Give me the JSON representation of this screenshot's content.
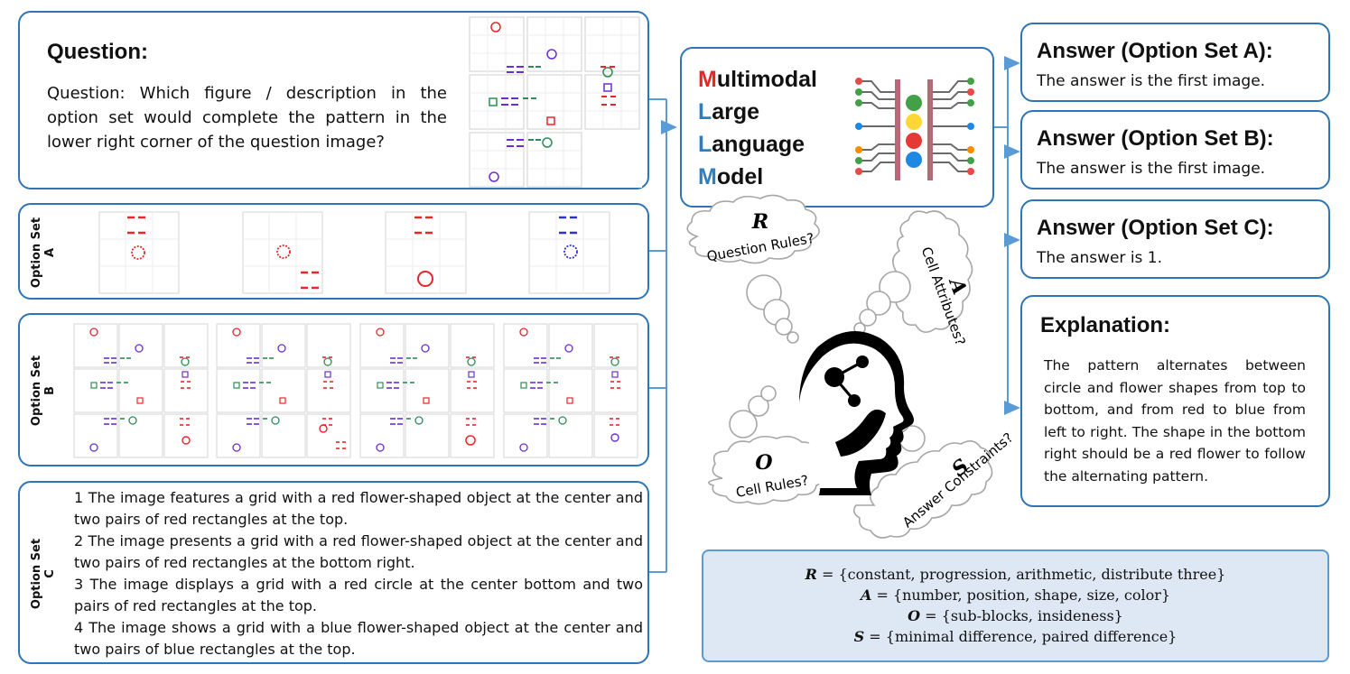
{
  "question": {
    "heading": "Question:",
    "text": "Question: Which figure / description in the option set would complete the pattern in the lower right corner of the question image?"
  },
  "option_sets": {
    "a_label_line1": "Option Set",
    "a_label_line2": "A",
    "b_label_line1": "Option Set",
    "b_label_line2": "B",
    "c_label_line1": "Option Set",
    "c_label_line2": "C",
    "c_descriptions": [
      "1 The image features a grid with a red flower-shaped object at the center and two pairs of red rectangles at the top.",
      "2 The image presents a grid with a red flower-shaped object at the center and two pairs of red rectangles at the bottom right.",
      "3 The image displays a grid with a red circle at the center bottom and two pairs of red rectangles at the top.",
      "4 The image shows a grid with a blue flower-shaped object at the center and two pairs of blue rectangles at the top."
    ]
  },
  "model": {
    "lines": [
      {
        "initial": "M",
        "rest": "ultimodal",
        "initial_color": "#e8262a"
      },
      {
        "initial": "L",
        "rest": "arge",
        "initial_color": "#2e7fc1"
      },
      {
        "initial": "L",
        "rest": "anguage",
        "initial_color": "#2e7fc1"
      },
      {
        "initial": "M",
        "rest": "odel",
        "initial_color": "#2e7fc1"
      }
    ],
    "icon": "neural-chip-icon"
  },
  "thoughts": {
    "r_letter": "R",
    "r_text": "Question Rules?",
    "a_letter": "A",
    "a_text": "Cell Attributes?",
    "o_letter": "O",
    "o_text": "Cell Rules?",
    "s_letter": "S",
    "s_text": "Answer Constraints?",
    "icon": "thinking-head-icon"
  },
  "answers": {
    "a_title": "Answer (Option Set A):",
    "a_text": "The answer is the first image.",
    "b_title": "Answer (Option Set B):",
    "b_text": "The answer is the first image.",
    "c_title": "Answer (Option Set C):",
    "c_text": "The answer is 1."
  },
  "explanation": {
    "title": "Explanation:",
    "text": "The pattern alternates between circle and flower shapes from top to bottom, and from red to blue from left to right. The shape in the bottom right should be a red flower to follow the alternating pattern."
  },
  "sets": {
    "r_symbol": "R",
    "r_values": " = {constant, progression, arithmetic, distribute three}",
    "a_symbol": "A",
    "a_values": " = {number, position, shape, size, color}",
    "o_symbol": "O",
    "o_values": " = {sub-blocks, insideness}",
    "s_symbol": "S",
    "s_values": " = {minimal difference, paired difference}"
  },
  "colors": {
    "border": "#2e75b6",
    "arrow": "#5b9bd5",
    "red": "#e8262a",
    "blue": "#2e7fc1",
    "formula_bg": "#dee8f4"
  }
}
